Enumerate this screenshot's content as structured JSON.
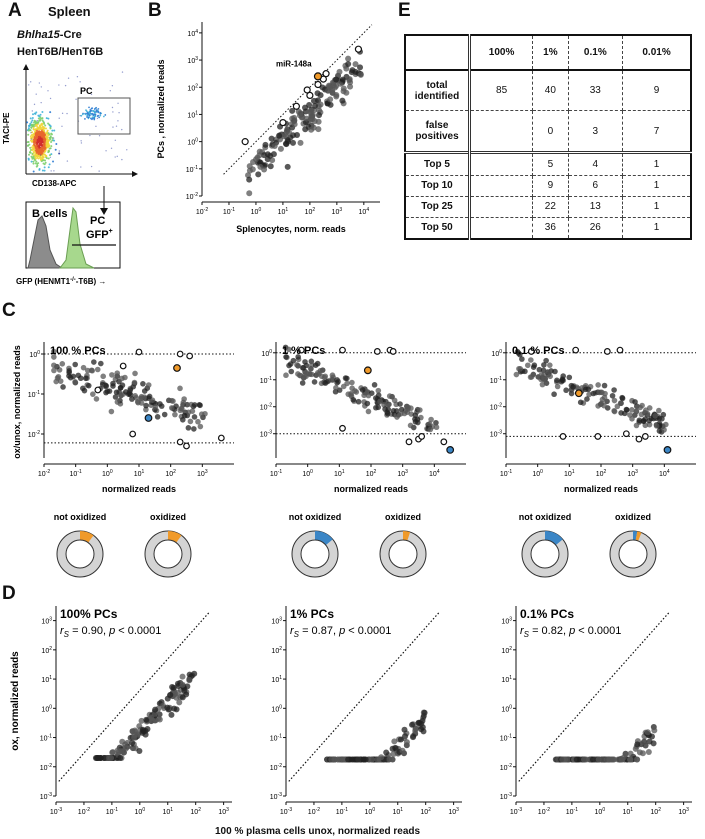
{
  "panels": {
    "a": "A",
    "b": "B",
    "c": "C",
    "d": "D",
    "e": "E"
  },
  "panelA": {
    "title": "Spleen",
    "genotype1_italic": "Bhlha15",
    "genotype1_suffix": "-Cre",
    "genotype2": "HenT6B/HenT6B",
    "gate_label": "PC",
    "y_axis": "TACI-PE",
    "x_axis": "CD138-APC",
    "hist_bcells": "B cells",
    "hist_pc": "PC",
    "hist_gfp": "GFP",
    "hist_gfp_sup": "+",
    "hist_x_axis_main": "GFP (HENMT1",
    "hist_x_axis_sup": "-/-",
    "hist_x_axis_end": "-T6B) →"
  },
  "panelB": {
    "annotation": "miR-148a",
    "chart_data": {
      "type": "scatter",
      "title": "",
      "xlabel": "Splenocytes, norm. reads",
      "ylabel": "PCs , normalized reads",
      "x_ticks": [
        "10-2",
        "10-1",
        "100",
        "101",
        "102",
        "103",
        "104"
      ],
      "y_ticks": [
        "10-2",
        "10-1",
        "100",
        "101",
        "102",
        "103",
        "104"
      ],
      "xlim": [
        -2,
        4.6
      ],
      "ylim": [
        -2,
        4.4
      ],
      "diagonal": true,
      "highlight_orange": [
        2.3,
        2.4
      ],
      "open_points": [
        [
          3.8,
          3.4
        ],
        [
          2.6,
          2.5
        ],
        [
          2.5,
          2.3
        ],
        [
          2.3,
          2.1
        ],
        [
          1.9,
          1.9
        ],
        [
          2.0,
          1.7
        ],
        [
          1.5,
          1.3
        ],
        [
          1.0,
          0.7
        ],
        [
          -0.4,
          0
        ]
      ],
      "n_points": 170
    }
  },
  "panelC": {
    "ylabel": "ox/unox, normalized reads",
    "legend_not_oxidized": "not oxidized",
    "legend_oxidized": "oxidized",
    "chart_data": [
      {
        "type": "scatter",
        "title": "100 % PCs",
        "xlabel": "normalized reads",
        "x_ticks": [
          "10-2",
          "10-1",
          "100",
          "101",
          "102",
          "103"
        ],
        "y_ticks": [
          "100",
          "10-1",
          "10-2"
        ],
        "xlim": [
          -2,
          4
        ],
        "ylim": [
          -2.6,
          0.3
        ],
        "hlines": [
          1,
          0.006
        ],
        "highlight_orange": [
          2.2,
          -0.35
        ],
        "highlight_blue": [
          1.3,
          -1.6
        ],
        "open_points": [
          [
            1.0,
            0.05
          ],
          [
            2.3,
            0
          ],
          [
            2.6,
            -0.05
          ],
          [
            3.6,
            -2.1
          ],
          [
            2.3,
            -2.2
          ],
          [
            2.5,
            -2.3
          ],
          [
            0.8,
            -2.0
          ],
          [
            0.5,
            -0.3
          ],
          [
            -0.3,
            -0.9
          ]
        ],
        "donut_not_oxidized": {
          "blue": 0,
          "orange": 10
        },
        "donut_oxidized": {
          "blue": 0,
          "orange": 10
        }
      },
      {
        "type": "scatter",
        "title": "1 % PCs",
        "xlabel": "normalized reads",
        "x_ticks": [
          "10-1",
          "100",
          "101",
          "102",
          "103",
          "104"
        ],
        "y_ticks": [
          "100",
          "10-1",
          "10-2",
          "10-3"
        ],
        "xlim": [
          -1,
          5
        ],
        "ylim": [
          -3.9,
          0.4
        ],
        "hlines": [
          1,
          0.001
        ],
        "highlight_orange": [
          1.9,
          -0.65
        ],
        "highlight_blue": [
          4.5,
          -3.6
        ],
        "open_points": [
          [
            -0.2,
            0.1
          ],
          [
            1.1,
            0.1
          ],
          [
            2.2,
            0.05
          ],
          [
            2.6,
            0.1
          ],
          [
            2.7,
            0.05
          ],
          [
            4.3,
            -3.3
          ],
          [
            3.5,
            -3.2
          ],
          [
            3.2,
            -3.3
          ],
          [
            3.6,
            -3.1
          ],
          [
            1.1,
            -2.8
          ]
        ],
        "donut_not_oxidized": {
          "blue": 14,
          "orange": 0
        },
        "donut_oxidized": {
          "blue": 0,
          "orange": 5
        }
      },
      {
        "type": "scatter",
        "title": "0.1 % PCs",
        "xlabel": "normalized reads",
        "x_ticks": [
          "10-1",
          "100",
          "101",
          "102",
          "103",
          "104"
        ],
        "y_ticks": [
          "100",
          "10-1",
          "10-2",
          "10-3"
        ],
        "xlim": [
          -1,
          5
        ],
        "ylim": [
          -3.9,
          0.4
        ],
        "hlines": [
          1,
          0.0008
        ],
        "highlight_orange": [
          1.3,
          -1.5
        ],
        "highlight_blue": [
          4.1,
          -3.6
        ],
        "open_points": [
          [
            -0.2,
            0.05
          ],
          [
            1.2,
            0.1
          ],
          [
            2.2,
            0.05
          ],
          [
            2.6,
            0.1
          ],
          [
            0.8,
            -3.1
          ],
          [
            1.9,
            -3.1
          ],
          [
            2.8,
            -3.0
          ],
          [
            3.4,
            -3.1
          ],
          [
            3.2,
            -3.2
          ]
        ],
        "donut_not_oxidized": {
          "blue": 14,
          "orange": 0
        },
        "donut_oxidized": {
          "blue": 3,
          "orange": 3
        }
      }
    ]
  },
  "panelD": {
    "ylabel": "ox, normalized reads",
    "xlabel": "100 % plasma cells unox, normalized reads",
    "chart_data": [
      {
        "type": "scatter",
        "title": "100% PCs",
        "r_s": "0.90",
        "p": "0.0001",
        "x_ticks": [
          "10-3",
          "10-2",
          "10-1",
          "100",
          "101",
          "102",
          "103"
        ],
        "y_ticks": [
          "10-3",
          "10-2",
          "10-1",
          "100",
          "101",
          "102",
          "103"
        ],
        "xlim": [
          -3,
          3.3
        ],
        "ylim": [
          -3,
          3.5
        ],
        "diagonal": true,
        "n_points": 150,
        "offset": -0.3
      },
      {
        "type": "scatter",
        "title": "1% PCs",
        "r_s": "0.87",
        "p": "0.0001",
        "x_ticks": [
          "10-3",
          "10-2",
          "10-1",
          "100",
          "101",
          "102",
          "103"
        ],
        "y_ticks": [
          "10-3",
          "10-2",
          "10-1",
          "100",
          "101",
          "102",
          "103"
        ],
        "xlim": [
          -3,
          3.3
        ],
        "ylim": [
          -3,
          3.5
        ],
        "diagonal": true,
        "n_points": 150,
        "offset": -1.8
      },
      {
        "type": "scatter",
        "title": "0.1% PCs",
        "r_s": "0.82",
        "p": "0.0001",
        "x_ticks": [
          "10-3",
          "10-2",
          "10-1",
          "100",
          "101",
          "102",
          "103"
        ],
        "y_ticks": [
          "10-3",
          "10-2",
          "10-1",
          "100",
          "101",
          "102",
          "103"
        ],
        "xlim": [
          -3,
          3.3
        ],
        "ylim": [
          -3,
          3.5
        ],
        "diagonal": true,
        "n_points": 150,
        "offset": -2.3
      }
    ]
  },
  "table": {
    "columns": [
      "",
      "100%",
      "1%",
      "0.1%",
      "0.01%"
    ],
    "rows": [
      {
        "label": "total identified",
        "values": [
          "85",
          "40",
          "33",
          "9"
        ]
      },
      {
        "label": "false positives",
        "values": [
          "",
          "0",
          "3",
          "7"
        ]
      },
      {
        "label": "Top 5",
        "values": [
          "",
          "5",
          "4",
          "1"
        ]
      },
      {
        "label": "Top 10",
        "values": [
          "",
          "9",
          "6",
          "1"
        ]
      },
      {
        "label": "Top 25",
        "values": [
          "",
          "22",
          "13",
          "1"
        ]
      },
      {
        "label": "Top 50",
        "values": [
          "",
          "36",
          "26",
          "1"
        ]
      }
    ]
  },
  "colors": {
    "orange": "#f09a2a",
    "blue": "#3b86c6",
    "donut_gray": "#d4d4d4",
    "hist_gray": "#8c8c8c",
    "hist_green": "#a7d88d"
  }
}
